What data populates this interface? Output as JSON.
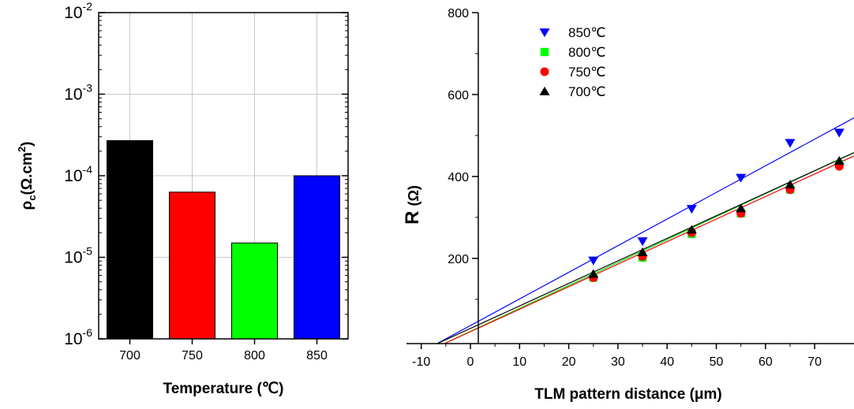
{
  "chart_data": [
    {
      "type": "bar",
      "xlabel": "Temperature (℃)",
      "ylabel_main": "ρ",
      "ylabel_sub": "c",
      "ylabel_rest": "(Ω.cm",
      "ylabel_sup": "2",
      "ylabel_end": ")",
      "y_scale": "log",
      "ylim": [
        1e-06,
        0.01
      ],
      "y_ticks": [
        {
          "value": 1e-06,
          "base": "10",
          "exp": "-6"
        },
        {
          "value": 1e-05,
          "base": "10",
          "exp": "-5"
        },
        {
          "value": 0.0001,
          "base": "10",
          "exp": "-4"
        },
        {
          "value": 0.001,
          "base": "10",
          "exp": "-3"
        },
        {
          "value": 0.01,
          "base": "10",
          "exp": "-2"
        }
      ],
      "categories": [
        "700",
        "750",
        "800",
        "850"
      ],
      "values": [
        0.00027,
        6.3e-05,
        1.5e-05,
        0.0001
      ],
      "colors": [
        "#000000",
        "#ff0000",
        "#00ff00",
        "#0000ff"
      ],
      "grid": true
    },
    {
      "type": "scatter",
      "xlabel": "TLM pattern distance (μm)",
      "ylabel_main": "R",
      "ylabel_unit": "(Ω)",
      "xlim": [
        -13,
        78
      ],
      "ylim": [
        -8,
        800
      ],
      "x_ticks": [
        "-10",
        "0",
        "10",
        "20",
        "30",
        "40",
        "50",
        "60",
        "70"
      ],
      "x_tick_values": [
        -10,
        0,
        10,
        20,
        30,
        40,
        50,
        60,
        70
      ],
      "y_ticks": [
        "200",
        "400",
        "600",
        "800"
      ],
      "y_tick_values": [
        200,
        400,
        600,
        800
      ],
      "legend_position": "top-left",
      "series": [
        {
          "name": "850℃",
          "marker": "triangle-down",
          "color": "#0000ff",
          "x": [
            25,
            35,
            45,
            55,
            65,
            75
          ],
          "y": [
            195,
            242,
            321,
            397,
            482,
            507
          ],
          "fit": {
            "slope": 6.5,
            "intercept": 36
          }
        },
        {
          "name": "800℃",
          "marker": "square",
          "color": "#00ff00",
          "x": [
            25,
            35,
            45,
            55,
            65,
            75
          ],
          "y": [
            153,
            202,
            260,
            310,
            368,
            430
          ],
          "fit": {
            "slope": 5.6,
            "intercept": 22
          }
        },
        {
          "name": "750℃",
          "marker": "circle",
          "color": "#ff0000",
          "x": [
            25,
            35,
            45,
            55,
            65,
            75
          ],
          "y": [
            153,
            205,
            263,
            310,
            368,
            425
          ],
          "fit": {
            "slope": 5.5,
            "intercept": 21
          }
        },
        {
          "name": "700℃",
          "marker": "triangle-up",
          "color": "#000000",
          "x": [
            25,
            35,
            45,
            55,
            65,
            75
          ],
          "y": [
            162,
            215,
            270,
            322,
            380,
            438
          ],
          "fit": {
            "slope": 5.5,
            "intercept": 29
          }
        }
      ]
    }
  ]
}
